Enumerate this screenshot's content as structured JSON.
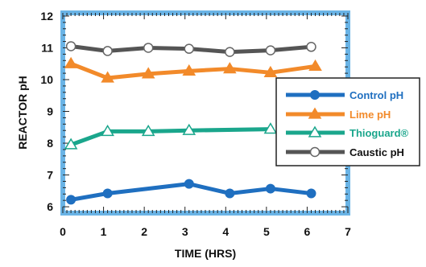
{
  "chart_data": {
    "type": "line",
    "xlabel": "TIME (HRS)",
    "ylabel": "REACTOR pH",
    "xlim": [
      0,
      7
    ],
    "ylim": [
      5.8,
      12.1
    ],
    "x_ticks": [
      0,
      1,
      2,
      3,
      4,
      5,
      6,
      7
    ],
    "y_ticks": [
      6,
      7,
      8,
      9,
      10,
      11,
      12
    ],
    "frame_color": "#6ab4e6",
    "legend_position": "right",
    "series": [
      {
        "name": "Control pH",
        "color": "#1f6fc0",
        "marker": "circle-filled",
        "x": [
          0.2,
          1.1,
          3.1,
          4.1,
          5.1,
          6.1
        ],
        "y": [
          6.22,
          6.42,
          6.72,
          6.42,
          6.57,
          6.42
        ]
      },
      {
        "name": "Lime pH",
        "color": "#f28a2a",
        "marker": "triangle-filled",
        "x": [
          0.2,
          1.1,
          2.1,
          3.1,
          4.1,
          5.1,
          6.2
        ],
        "y": [
          10.5,
          10.05,
          10.18,
          10.27,
          10.34,
          10.22,
          10.42
        ]
      },
      {
        "name": "Thioguard®",
        "color": "#1aa68c",
        "marker": "triangle-open",
        "x": [
          0.2,
          1.1,
          2.1,
          3.1,
          5.1
        ],
        "y": [
          7.95,
          8.37,
          8.37,
          8.4,
          8.44
        ]
      },
      {
        "name": "Caustic pH",
        "color": "#555555",
        "marker": "circle-open",
        "x": [
          0.2,
          1.1,
          2.1,
          3.1,
          4.1,
          5.1,
          6.1
        ],
        "y": [
          11.05,
          10.9,
          11.0,
          10.97,
          10.87,
          10.92,
          11.03
        ]
      }
    ]
  }
}
